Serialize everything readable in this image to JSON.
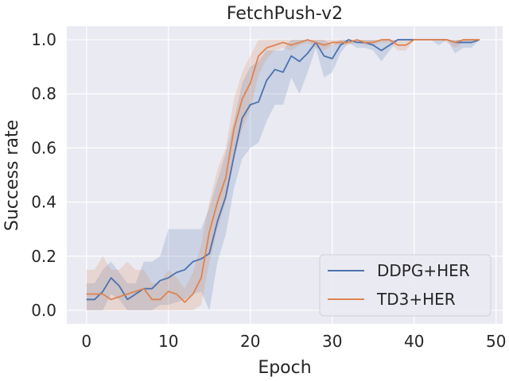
{
  "chart_data": {
    "type": "line",
    "title": "FetchPush-v2",
    "xlabel": "Epoch",
    "ylabel": "Success rate",
    "xlim": [
      -2.4,
      50.8
    ],
    "ylim": [
      -0.05,
      1.05
    ],
    "xticks": [
      0,
      10,
      20,
      30,
      40,
      50
    ],
    "yticks": [
      0.0,
      0.2,
      0.4,
      0.6,
      0.8,
      1.0
    ],
    "xtick_labels": [
      "0",
      "10",
      "20",
      "30",
      "40",
      "50"
    ],
    "ytick_labels": [
      "0.0",
      "0.2",
      "0.4",
      "0.6",
      "0.8",
      "1.0"
    ],
    "grid": true,
    "legend_position": "lower-right",
    "x": [
      0,
      1,
      2,
      3,
      4,
      5,
      6,
      7,
      8,
      9,
      10,
      11,
      12,
      13,
      14,
      15,
      16,
      17,
      18,
      19,
      20,
      21,
      22,
      23,
      24,
      25,
      26,
      27,
      28,
      29,
      30,
      31,
      32,
      33,
      34,
      35,
      36,
      37,
      38,
      39,
      40,
      41,
      42,
      43,
      44,
      45,
      46,
      47,
      48
    ],
    "series": [
      {
        "name": "DDPG+HER",
        "color": "#4c72b0",
        "values": [
          0.04,
          0.04,
          0.07,
          0.12,
          0.09,
          0.04,
          0.06,
          0.08,
          0.08,
          0.11,
          0.12,
          0.14,
          0.15,
          0.18,
          0.19,
          0.21,
          0.33,
          0.42,
          0.57,
          0.71,
          0.76,
          0.77,
          0.85,
          0.89,
          0.88,
          0.94,
          0.92,
          0.95,
          0.99,
          0.94,
          0.93,
          0.98,
          1.0,
          0.99,
          0.99,
          0.98,
          0.96,
          0.98,
          1.0,
          1.0,
          1.0,
          1.0,
          1.0,
          1.0,
          1.0,
          0.99,
          0.99,
          0.99,
          1.0
        ],
        "lower": [
          0.0,
          0.0,
          0.0,
          0.06,
          0.04,
          0.0,
          0.0,
          0.0,
          0.0,
          0.02,
          0.02,
          0.03,
          0.04,
          0.06,
          0.07,
          0.0,
          0.18,
          0.28,
          0.45,
          0.56,
          0.6,
          0.62,
          0.7,
          0.76,
          0.76,
          0.86,
          0.8,
          0.88,
          0.97,
          0.86,
          0.88,
          0.95,
          0.99,
          0.97,
          0.97,
          0.96,
          0.92,
          0.96,
          1.0,
          1.0,
          1.0,
          1.0,
          1.0,
          0.98,
          1.0,
          0.95,
          0.97,
          0.97,
          1.0
        ],
        "upper": [
          0.1,
          0.1,
          0.15,
          0.18,
          0.14,
          0.1,
          0.1,
          0.18,
          0.18,
          0.2,
          0.3,
          0.3,
          0.3,
          0.3,
          0.3,
          0.38,
          0.48,
          0.58,
          0.7,
          0.84,
          0.9,
          0.92,
          0.96,
          0.96,
          0.96,
          1.0,
          1.0,
          1.0,
          1.0,
          1.0,
          0.98,
          1.0,
          1.0,
          1.0,
          1.0,
          1.0,
          1.0,
          1.0,
          1.0,
          1.0,
          1.0,
          1.0,
          1.0,
          1.0,
          1.0,
          1.0,
          1.0,
          1.0,
          1.0
        ]
      },
      {
        "name": "TD3+HER",
        "color": "#dd8452",
        "values": [
          0.06,
          0.06,
          0.06,
          0.04,
          0.05,
          0.06,
          0.07,
          0.08,
          0.04,
          0.04,
          0.07,
          0.06,
          0.03,
          0.06,
          0.12,
          0.29,
          0.4,
          0.49,
          0.67,
          0.78,
          0.84,
          0.94,
          0.97,
          0.98,
          0.99,
          0.98,
          0.99,
          1.0,
          0.99,
          0.98,
          0.99,
          0.99,
          0.99,
          1.0,
          0.99,
          0.99,
          1.0,
          1.0,
          0.98,
          0.98,
          1.0,
          1.0,
          1.0,
          1.0,
          1.0,
          0.99,
          1.0,
          1.0,
          1.0
        ],
        "lower": [
          0.0,
          0.0,
          0.0,
          0.0,
          0.0,
          0.0,
          0.0,
          0.0,
          0.0,
          0.0,
          0.0,
          0.0,
          0.0,
          0.0,
          0.02,
          0.18,
          0.3,
          0.4,
          0.56,
          0.67,
          0.74,
          0.87,
          0.93,
          0.96,
          0.97,
          0.96,
          0.98,
          0.99,
          0.97,
          0.96,
          0.98,
          0.98,
          0.98,
          0.99,
          0.98,
          0.98,
          0.99,
          0.99,
          0.96,
          0.96,
          1.0,
          1.0,
          1.0,
          1.0,
          0.99,
          0.97,
          0.99,
          0.99,
          1.0
        ],
        "upper": [
          0.15,
          0.15,
          0.2,
          0.15,
          0.15,
          0.18,
          0.15,
          0.15,
          0.1,
          0.1,
          0.15,
          0.12,
          0.08,
          0.14,
          0.24,
          0.4,
          0.52,
          0.6,
          0.78,
          0.88,
          0.94,
          1.0,
          1.0,
          1.0,
          1.0,
          1.0,
          1.0,
          1.0,
          1.0,
          1.0,
          1.0,
          1.0,
          1.0,
          1.0,
          1.0,
          1.0,
          1.0,
          1.0,
          1.0,
          1.0,
          1.0,
          1.0,
          1.0,
          1.0,
          1.0,
          1.0,
          1.0,
          1.0,
          1.0
        ]
      }
    ]
  },
  "colors": {
    "plot_background": "#eaeaf2",
    "grid": "#ffffff",
    "text": "#262626"
  }
}
